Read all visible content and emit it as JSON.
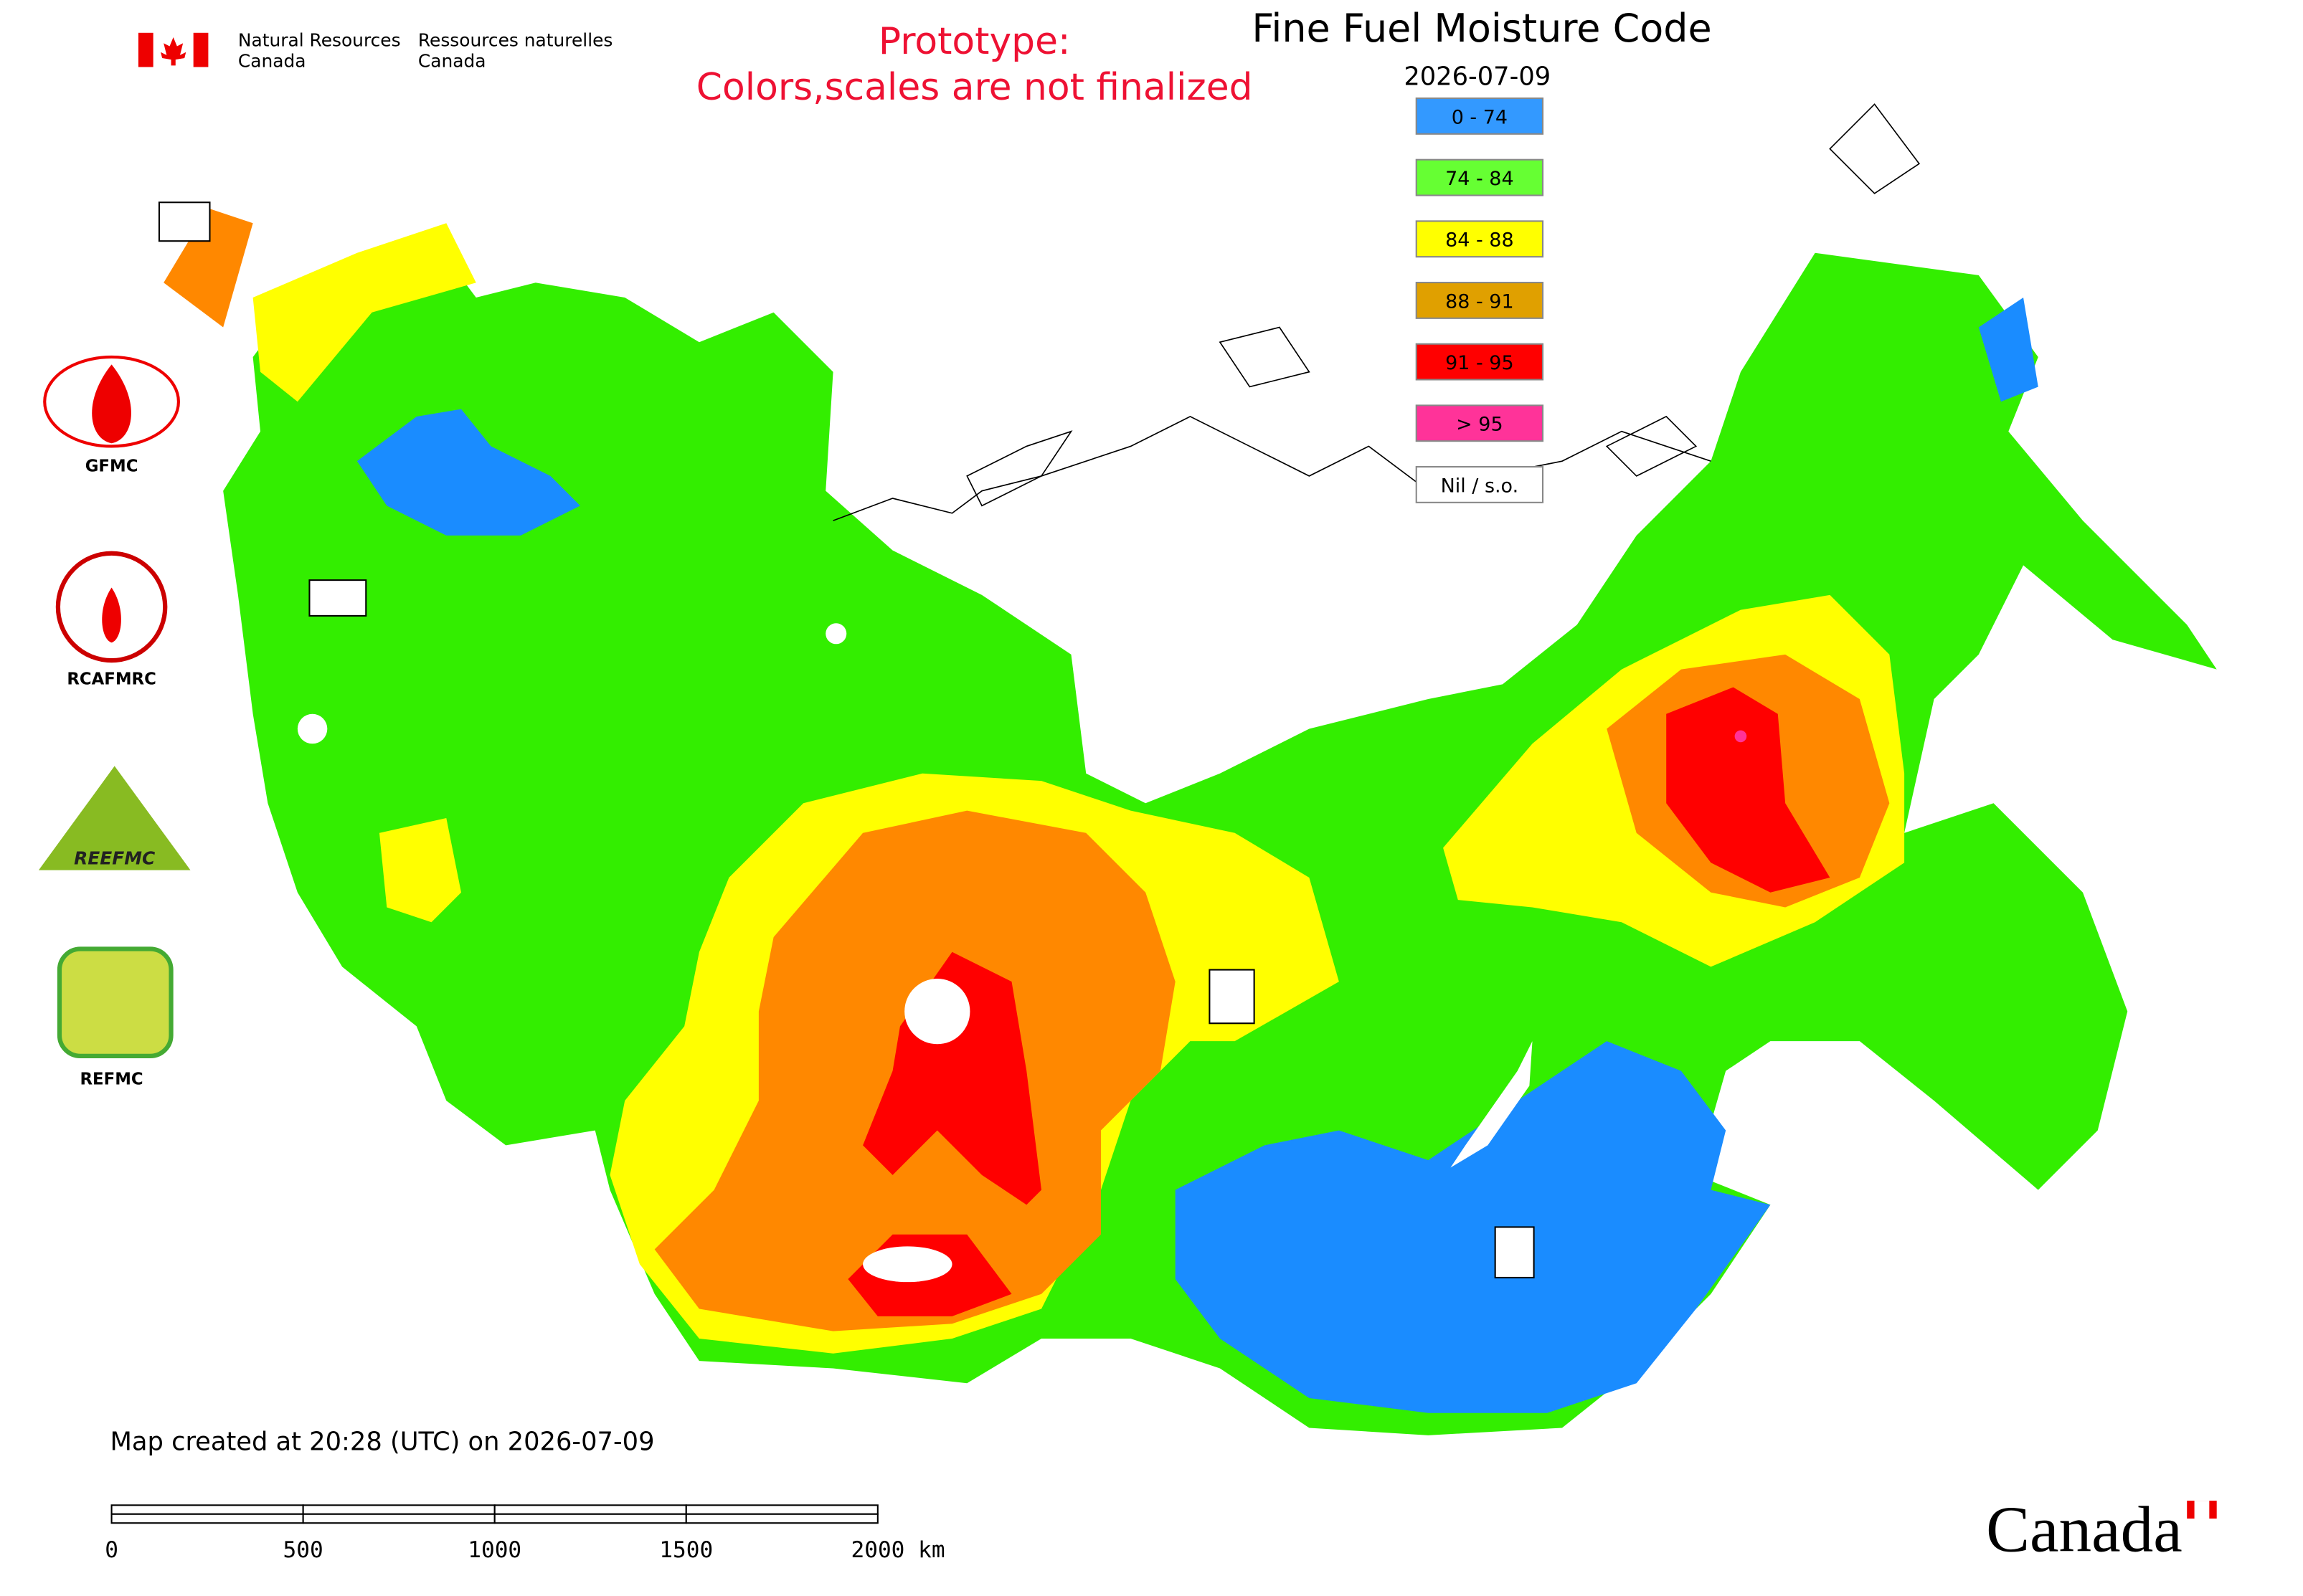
{
  "header": {
    "agency_en": [
      "Natural Resources",
      "Canada"
    ],
    "agency_fr": [
      "Ressources naturelles",
      "Canada"
    ]
  },
  "notice": [
    "Prototype:",
    "Colors,scales are not finalized"
  ],
  "title": "Fine Fuel Moisture Code",
  "date": "2026-07-09",
  "legend": [
    {
      "label": "0 - 74",
      "color": "#3399ff"
    },
    {
      "label": "74 - 84",
      "color": "#66ff33"
    },
    {
      "label": "84 - 88",
      "color": "#ffff00"
    },
    {
      "label": "88 - 91",
      "color": "#e0a000"
    },
    {
      "label": "91 - 95",
      "color": "#ff0000"
    },
    {
      "label": "> 95",
      "color": "#ff3399"
    },
    {
      "label": "Nil / s.o.",
      "color": "#ffffff"
    }
  ],
  "logos": [
    "GFMC",
    "RCAFMRC",
    "REEFMC",
    "REFMC"
  ],
  "caption": "Map created at 20:28 (UTC) on 2026-07-09",
  "scale_bar": [
    "0",
    "500",
    "1000",
    "1500",
    "2000 km"
  ],
  "wordmark": "Canada"
}
